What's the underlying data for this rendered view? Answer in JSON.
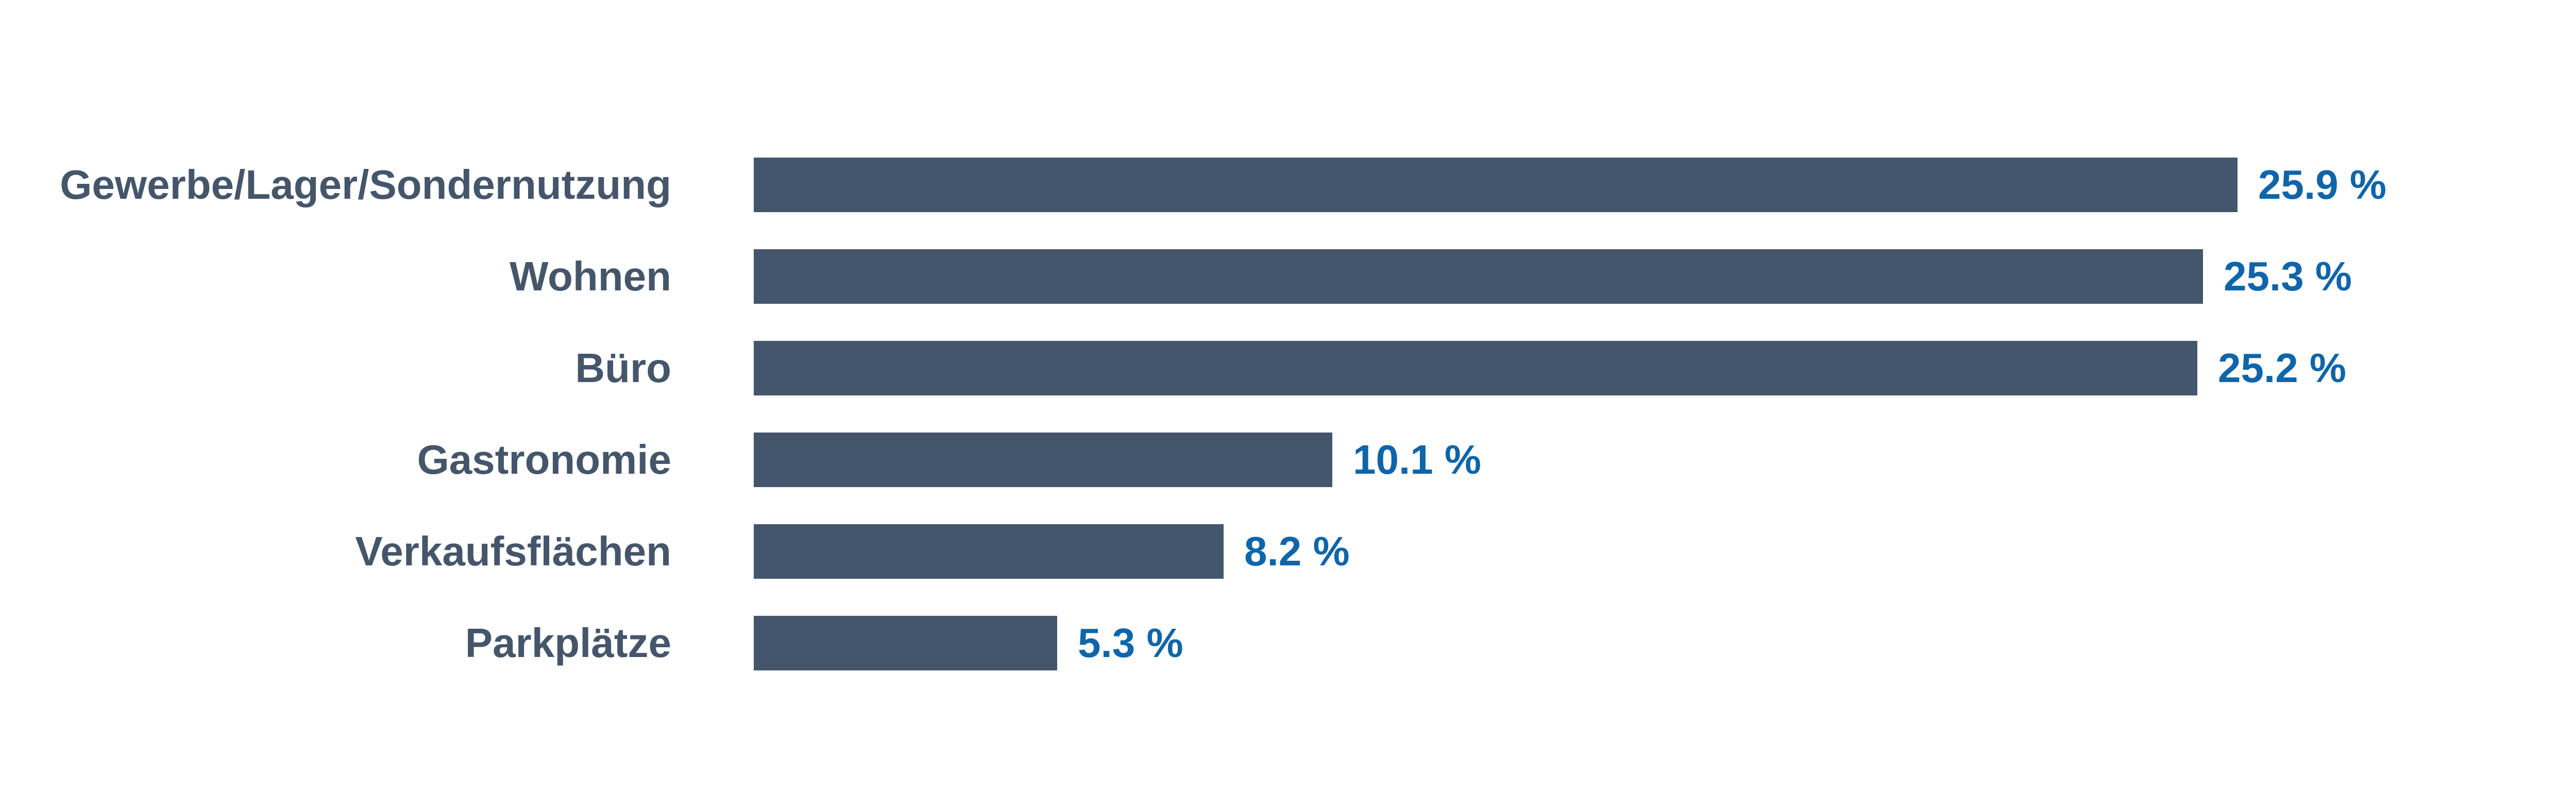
{
  "chart_data": {
    "type": "bar",
    "orientation": "horizontal",
    "title": "",
    "xlabel": "",
    "ylabel": "",
    "unit": "%",
    "grid": false,
    "legend": false,
    "axis_visible": false,
    "xlim": [
      0,
      26.5
    ],
    "categories": [
      "Gewerbe/Lager/Sondernutzung",
      "Wohnen",
      "Büro",
      "Gastronomie",
      "Verkaufsflächen",
      "Parkplätze"
    ],
    "values": [
      25.9,
      25.3,
      25.2,
      10.1,
      8.2,
      5.3
    ],
    "value_labels": [
      "25.9 %",
      "25.3 %",
      "25.2 %",
      "10.1 %",
      "8.2 %",
      "5.3 %"
    ],
    "colors": {
      "bar": "#44566C",
      "category_label": "#45566B",
      "value_label": "#0F65A9",
      "background": "#FFFFFF"
    }
  }
}
